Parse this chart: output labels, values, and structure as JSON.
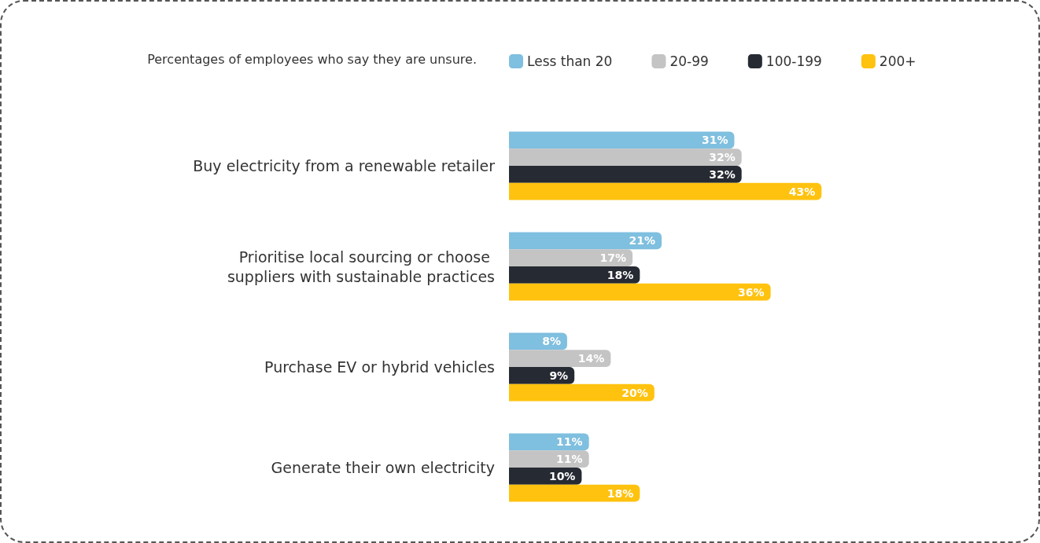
{
  "chart_data": {
    "type": "bar",
    "orientation": "horizontal",
    "legend_title": "Percentages of employees who say they are unsure.",
    "legend": "top",
    "categories": [
      "Buy electricity from a renewable retailer",
      "Prioritise local sourcing or choose suppliers with sustainable practices",
      "Purchase EV or hybrid vehicles",
      "Generate their own electricity"
    ],
    "series": [
      {
        "name": "Less than 20",
        "color": "#7fbfdf",
        "values": [
          31,
          21,
          8,
          11
        ],
        "value_labels": [
          "31%",
          "21%",
          "8%",
          "11%"
        ]
      },
      {
        "name": "20-99",
        "color": "#c4c4c4",
        "values": [
          32,
          17,
          14,
          11
        ],
        "value_labels": [
          "32%",
          "17%",
          "14%",
          "11%"
        ]
      },
      {
        "name": "100-199",
        "color": "#262a33",
        "values": [
          32,
          18,
          9,
          10
        ],
        "value_labels": [
          "32%",
          "18%",
          "9%",
          "10%"
        ]
      },
      {
        "name": "200+",
        "color": "#ffc20e",
        "values": [
          43,
          36,
          20,
          18
        ],
        "value_labels": [
          "43%",
          "36%",
          "20%",
          "18%"
        ]
      }
    ]
  }
}
